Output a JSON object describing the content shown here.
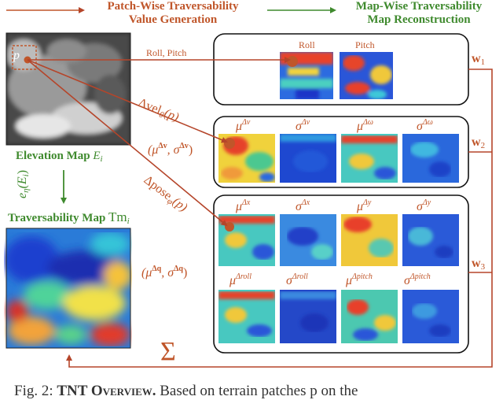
{
  "header_left": {
    "line1": "Patch-Wise Traversability",
    "line2": "Value Generation"
  },
  "header_right": {
    "line1": "Map-Wise Traversability",
    "line2": "Map Reconstruction"
  },
  "left": {
    "patch_label": "p",
    "elevation_label": "Elevation Map",
    "elevation_sym": "E",
    "elevation_sub": "i",
    "encoder_label": "e",
    "encoder_sub": "η",
    "encoder_arg": "(E",
    "encoder_arg_sub": "i",
    "encoder_close": ")",
    "trav_label": "Traversability Map",
    "trav_sym": "Tm",
    "trav_sub": "i"
  },
  "arrows": {
    "roll_pitch": "Roll, Pitch",
    "delta_vel": "Δvel",
    "delta_vel_sub": "θ",
    "delta_vel_arg": "(p)",
    "mu_sigma_v_open": "(μ",
    "mu_sigma_v_sup1": "Δv",
    "mu_sigma_v_mid": ", σ",
    "mu_sigma_v_sup2": "Δv",
    "mu_sigma_v_close": ")",
    "delta_pose": "Δpose",
    "delta_pose_sub": "φ",
    "delta_pose_arg": "(p)",
    "mu_sigma_q_open": "(μ",
    "mu_sigma_q_sup1": "Δq",
    "mu_sigma_q_mid": ", σ",
    "mu_sigma_q_sup2": "Δq",
    "mu_sigma_q_close": ")",
    "sum_symbol": "Σ"
  },
  "weights": {
    "w1": "w",
    "w1_sub": "1",
    "w2": "w",
    "w2_sub": "2",
    "w3": "w",
    "w3_sub": "3"
  },
  "box1": {
    "roll": "Roll",
    "pitch": "Pitch"
  },
  "box2": {
    "mu": "μ",
    "mu_v_sup": "Δv",
    "sigma": "σ",
    "sigma_v_sup": "Δv",
    "mu_w_sup": "Δω",
    "sigma_w_sup": "Δω"
  },
  "box3": {
    "mu": "μ",
    "sigma": "σ",
    "x_sup": "Δx",
    "y_sup": "Δy",
    "roll_sup": "Δroll",
    "pitch_sup": "Δpitch"
  },
  "caption": {
    "prefix": "Fig. 2:",
    "bold": "TNT Overview.",
    "rest": "Based on terrain patches p on the"
  },
  "colors": {
    "orange": "#c0562a",
    "green": "#3f8a2e",
    "arrow_red": "#b5452a"
  }
}
